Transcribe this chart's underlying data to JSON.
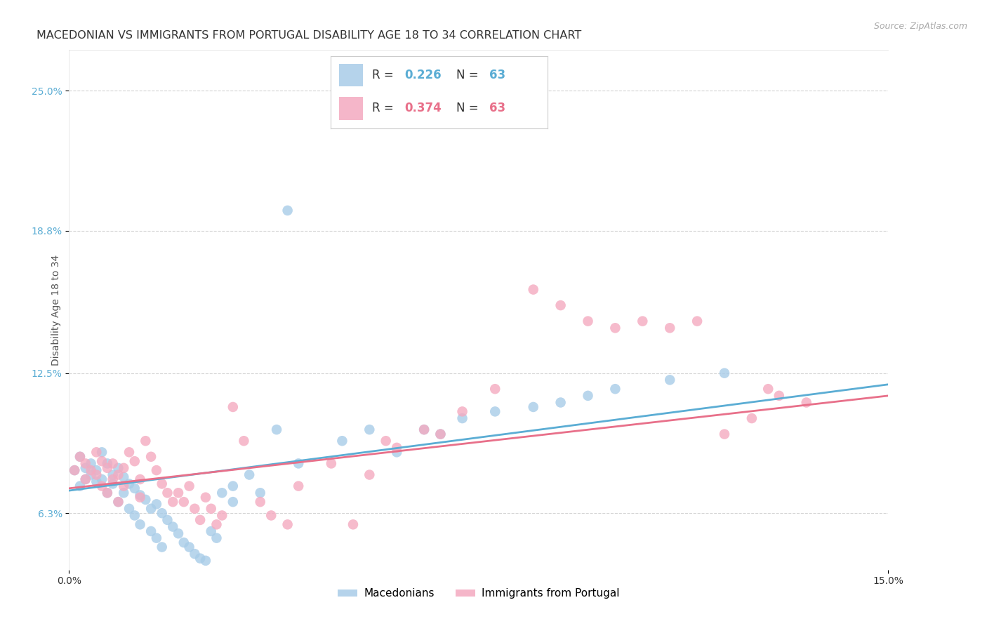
{
  "title": "MACEDONIAN VS IMMIGRANTS FROM PORTUGAL DISABILITY AGE 18 TO 34 CORRELATION CHART",
  "source": "Source: ZipAtlas.com",
  "ylabel_label": "Disability Age 18 to 34",
  "xmin": 0.0,
  "xmax": 0.15,
  "ymin": 0.038,
  "ymax": 0.268,
  "blue_scatter": [
    [
      0.001,
      0.082
    ],
    [
      0.002,
      0.088
    ],
    [
      0.002,
      0.075
    ],
    [
      0.003,
      0.083
    ],
    [
      0.003,
      0.078
    ],
    [
      0.004,
      0.085
    ],
    [
      0.004,
      0.08
    ],
    [
      0.005,
      0.082
    ],
    [
      0.005,
      0.077
    ],
    [
      0.006,
      0.09
    ],
    [
      0.006,
      0.078
    ],
    [
      0.007,
      0.085
    ],
    [
      0.007,
      0.072
    ],
    [
      0.008,
      0.08
    ],
    [
      0.008,
      0.076
    ],
    [
      0.009,
      0.083
    ],
    [
      0.009,
      0.068
    ],
    [
      0.01,
      0.079
    ],
    [
      0.01,
      0.072
    ],
    [
      0.011,
      0.076
    ],
    [
      0.011,
      0.065
    ],
    [
      0.012,
      0.074
    ],
    [
      0.012,
      0.062
    ],
    [
      0.013,
      0.071
    ],
    [
      0.013,
      0.058
    ],
    [
      0.014,
      0.069
    ],
    [
      0.015,
      0.065
    ],
    [
      0.015,
      0.055
    ],
    [
      0.016,
      0.067
    ],
    [
      0.016,
      0.052
    ],
    [
      0.017,
      0.063
    ],
    [
      0.017,
      0.048
    ],
    [
      0.018,
      0.06
    ],
    [
      0.019,
      0.057
    ],
    [
      0.02,
      0.054
    ],
    [
      0.021,
      0.05
    ],
    [
      0.022,
      0.048
    ],
    [
      0.023,
      0.045
    ],
    [
      0.024,
      0.043
    ],
    [
      0.025,
      0.042
    ],
    [
      0.026,
      0.055
    ],
    [
      0.027,
      0.052
    ],
    [
      0.028,
      0.072
    ],
    [
      0.03,
      0.075
    ],
    [
      0.03,
      0.068
    ],
    [
      0.033,
      0.08
    ],
    [
      0.035,
      0.072
    ],
    [
      0.038,
      0.1
    ],
    [
      0.04,
      0.197
    ],
    [
      0.042,
      0.085
    ],
    [
      0.05,
      0.095
    ],
    [
      0.055,
      0.1
    ],
    [
      0.06,
      0.09
    ],
    [
      0.065,
      0.1
    ],
    [
      0.068,
      0.098
    ],
    [
      0.072,
      0.105
    ],
    [
      0.078,
      0.108
    ],
    [
      0.085,
      0.11
    ],
    [
      0.09,
      0.112
    ],
    [
      0.095,
      0.115
    ],
    [
      0.1,
      0.118
    ],
    [
      0.11,
      0.122
    ],
    [
      0.12,
      0.125
    ]
  ],
  "pink_scatter": [
    [
      0.001,
      0.082
    ],
    [
      0.002,
      0.088
    ],
    [
      0.003,
      0.085
    ],
    [
      0.003,
      0.078
    ],
    [
      0.004,
      0.082
    ],
    [
      0.005,
      0.09
    ],
    [
      0.005,
      0.08
    ],
    [
      0.006,
      0.086
    ],
    [
      0.006,
      0.075
    ],
    [
      0.007,
      0.083
    ],
    [
      0.007,
      0.072
    ],
    [
      0.008,
      0.085
    ],
    [
      0.008,
      0.078
    ],
    [
      0.009,
      0.08
    ],
    [
      0.009,
      0.068
    ],
    [
      0.01,
      0.083
    ],
    [
      0.01,
      0.075
    ],
    [
      0.011,
      0.09
    ],
    [
      0.012,
      0.086
    ],
    [
      0.013,
      0.078
    ],
    [
      0.013,
      0.07
    ],
    [
      0.014,
      0.095
    ],
    [
      0.015,
      0.088
    ],
    [
      0.016,
      0.082
    ],
    [
      0.017,
      0.076
    ],
    [
      0.018,
      0.072
    ],
    [
      0.019,
      0.068
    ],
    [
      0.02,
      0.072
    ],
    [
      0.021,
      0.068
    ],
    [
      0.022,
      0.075
    ],
    [
      0.023,
      0.065
    ],
    [
      0.024,
      0.06
    ],
    [
      0.025,
      0.07
    ],
    [
      0.026,
      0.065
    ],
    [
      0.027,
      0.058
    ],
    [
      0.028,
      0.062
    ],
    [
      0.03,
      0.11
    ],
    [
      0.032,
      0.095
    ],
    [
      0.035,
      0.068
    ],
    [
      0.037,
      0.062
    ],
    [
      0.04,
      0.058
    ],
    [
      0.042,
      0.075
    ],
    [
      0.048,
      0.085
    ],
    [
      0.052,
      0.058
    ],
    [
      0.055,
      0.08
    ],
    [
      0.058,
      0.095
    ],
    [
      0.06,
      0.092
    ],
    [
      0.065,
      0.1
    ],
    [
      0.068,
      0.098
    ],
    [
      0.072,
      0.108
    ],
    [
      0.078,
      0.118
    ],
    [
      0.085,
      0.162
    ],
    [
      0.09,
      0.155
    ],
    [
      0.095,
      0.148
    ],
    [
      0.1,
      0.145
    ],
    [
      0.105,
      0.148
    ],
    [
      0.11,
      0.145
    ],
    [
      0.115,
      0.148
    ],
    [
      0.12,
      0.098
    ],
    [
      0.125,
      0.105
    ],
    [
      0.128,
      0.118
    ],
    [
      0.13,
      0.115
    ],
    [
      0.135,
      0.112
    ]
  ],
  "blue_line": {
    "x0": 0.0,
    "y0": 0.073,
    "x1": 0.15,
    "y1": 0.12
  },
  "pink_line": {
    "x0": 0.0,
    "y0": 0.074,
    "x1": 0.15,
    "y1": 0.115
  },
  "blue_line_color": "#5badd4",
  "pink_line_color": "#e8708a",
  "scatter_blue_color": "#a8cce8",
  "scatter_pink_color": "#f4aac0",
  "grid_color": "#d0d0d0",
  "bg_color": "#ffffff",
  "title_fontsize": 11.5,
  "source_fontsize": 9,
  "axis_label_fontsize": 10,
  "tick_fontsize": 10,
  "ytick_values": [
    0.063,
    0.125,
    0.188,
    0.25
  ],
  "ytick_labels": [
    "6.3%",
    "12.5%",
    "18.8%",
    "25.0%"
  ],
  "xtick_values": [
    0.0,
    0.15
  ],
  "xtick_labels": [
    "0.0%",
    "15.0%"
  ],
  "legend_blue_R": "0.226",
  "legend_blue_N": "63",
  "legend_pink_R": "0.374",
  "legend_pink_N": "63",
  "legend_text_color": "#333333",
  "legend_blue_val_color": "#5badd4",
  "legend_pink_val_color": "#e8708a"
}
